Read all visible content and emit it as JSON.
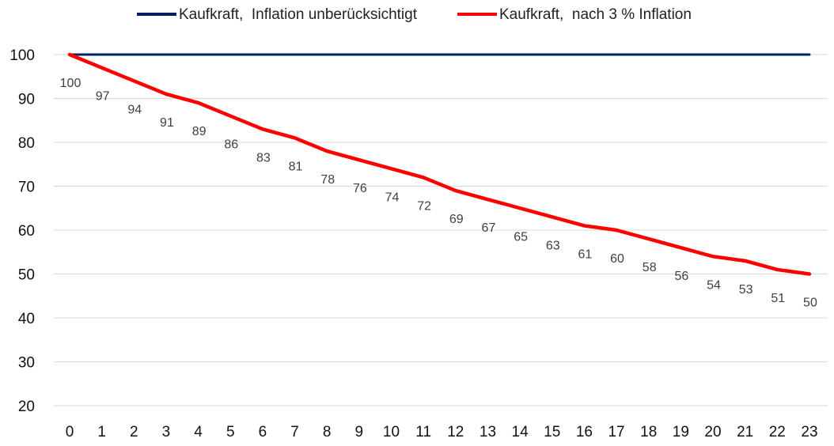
{
  "chart_data": {
    "type": "line",
    "title": "",
    "xlabel": "",
    "ylabel": "",
    "ylim": [
      20,
      100
    ],
    "yticks": [
      20,
      30,
      40,
      50,
      60,
      70,
      80,
      90,
      100
    ],
    "x": [
      0,
      1,
      2,
      3,
      4,
      5,
      6,
      7,
      8,
      9,
      10,
      11,
      12,
      13,
      14,
      15,
      16,
      17,
      18,
      19,
      20,
      21,
      22,
      23
    ],
    "grid": "horizontal",
    "legend_position": "top",
    "series": [
      {
        "name": "Kaufkraft,  Inflation unberücksichtigt",
        "color": "#002060",
        "values": [
          100,
          100,
          100,
          100,
          100,
          100,
          100,
          100,
          100,
          100,
          100,
          100,
          100,
          100,
          100,
          100,
          100,
          100,
          100,
          100,
          100,
          100,
          100,
          100
        ],
        "show_labels": false
      },
      {
        "name": "Kaufkraft,  nach 3 % Inflation",
        "color": "#ff0000",
        "values": [
          100,
          97,
          94,
          91,
          89,
          86,
          83,
          81,
          78,
          76,
          74,
          72,
          69,
          67,
          65,
          63,
          61,
          60,
          58,
          56,
          54,
          53,
          51,
          50
        ],
        "show_labels": true
      }
    ]
  }
}
